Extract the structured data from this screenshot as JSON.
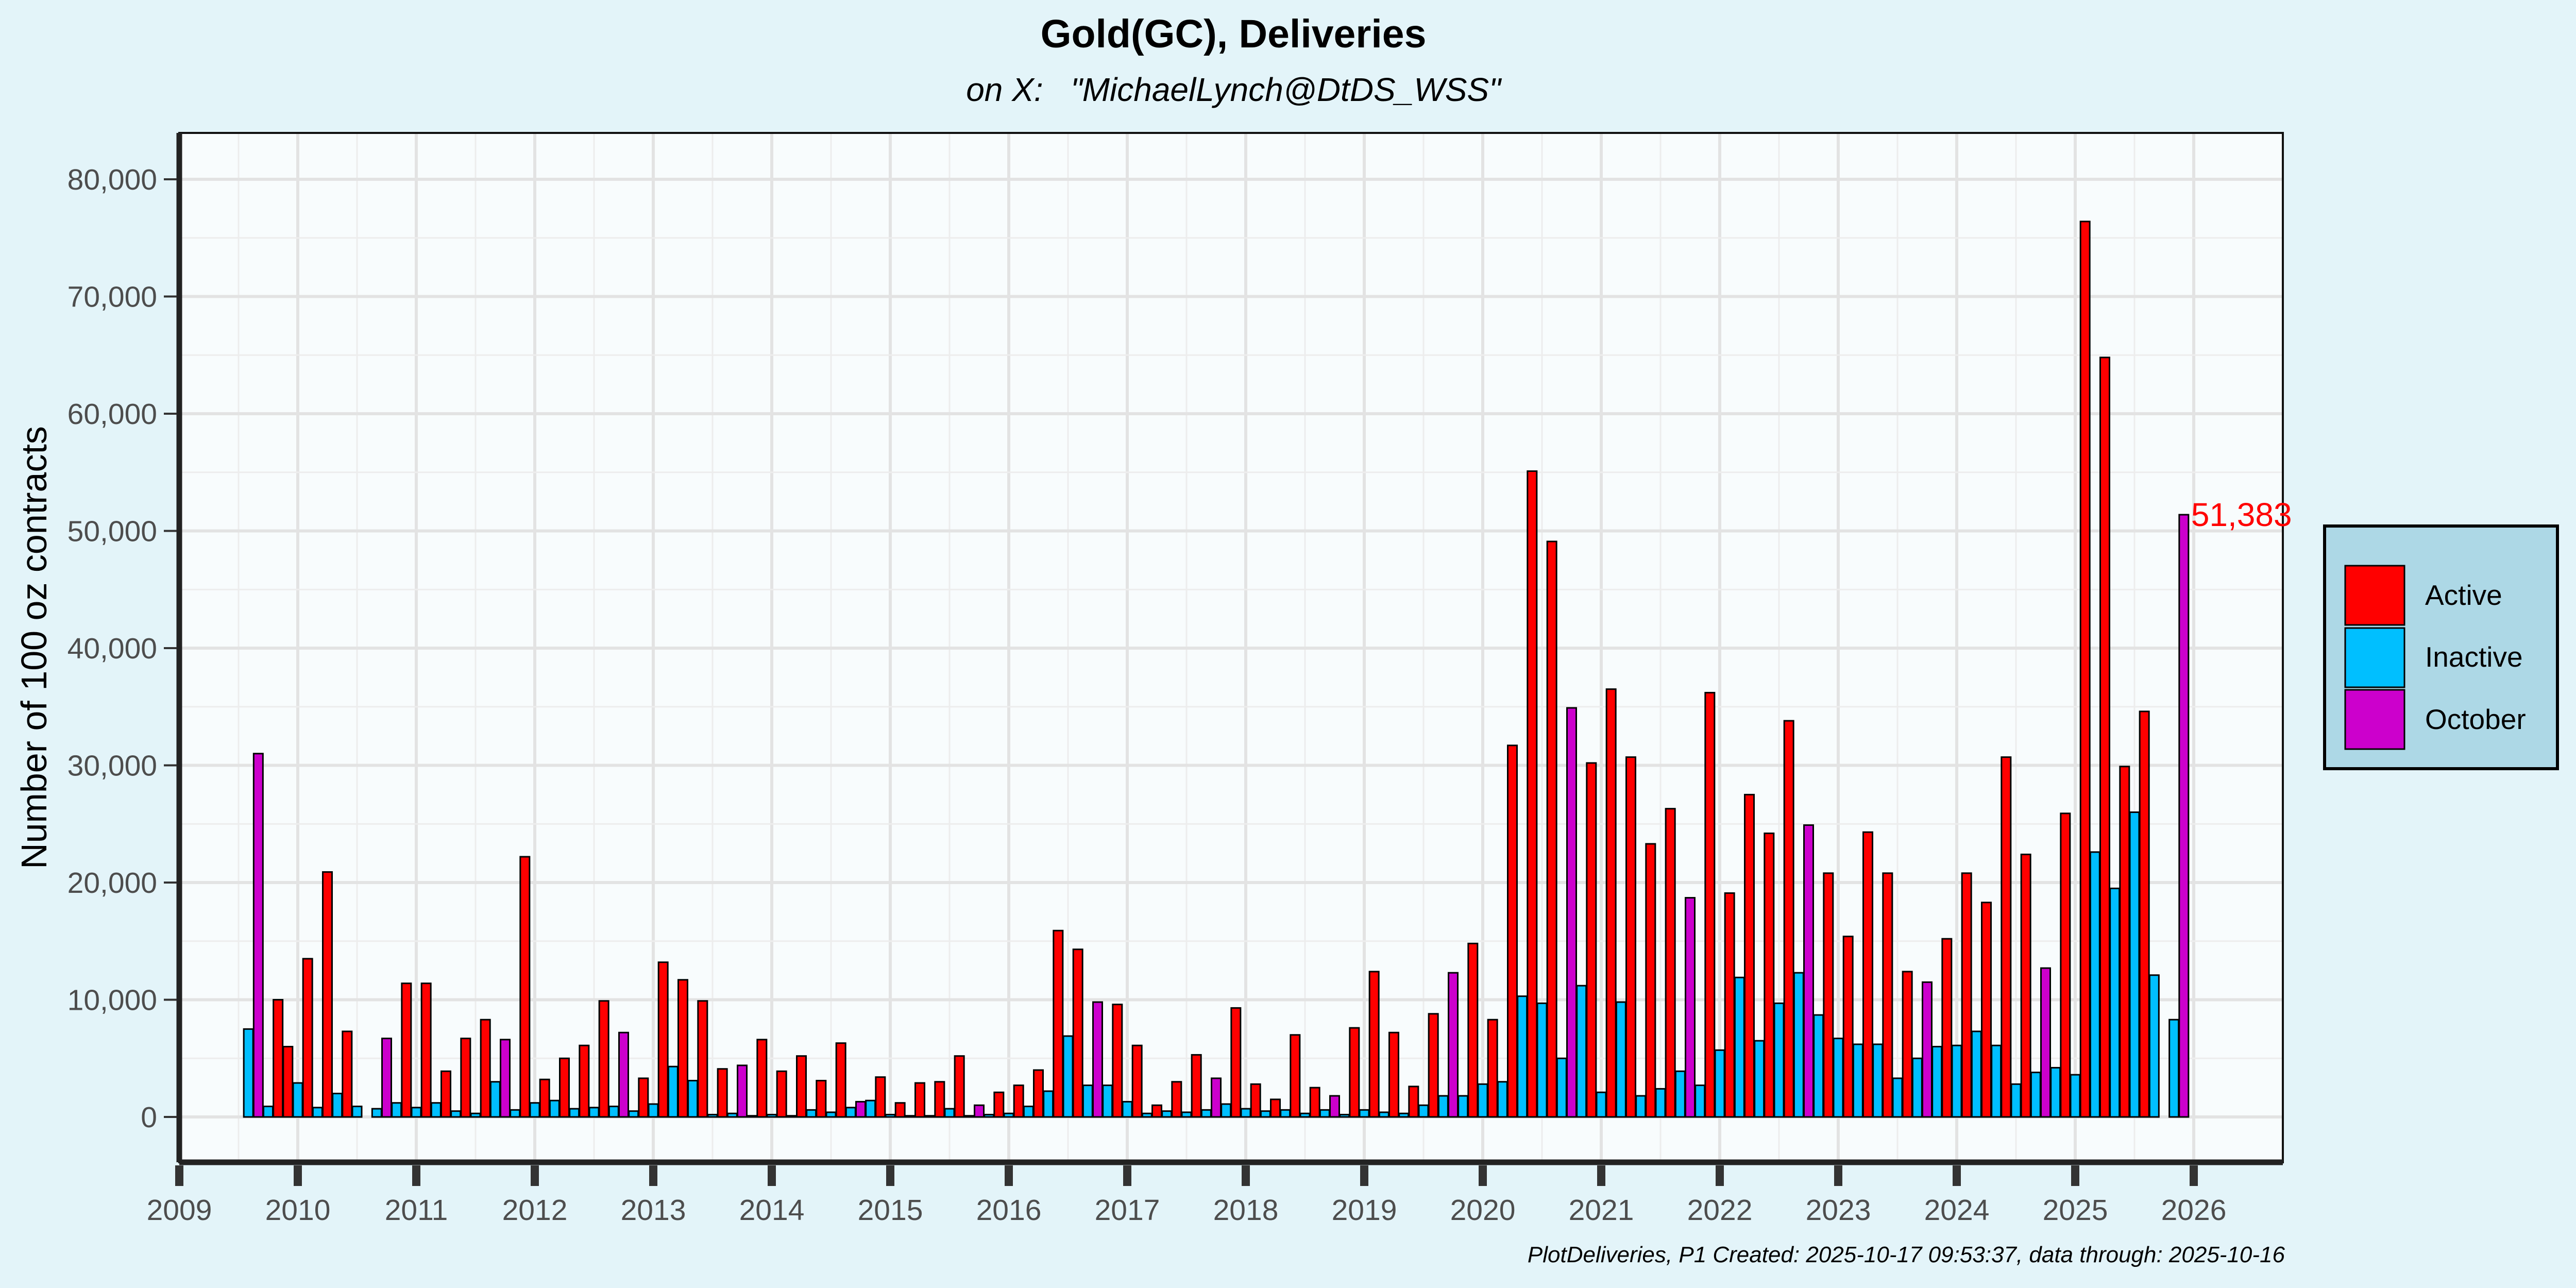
{
  "chart_data": {
    "type": "bar",
    "title": "Gold(GC), Deliveries",
    "subtitle": "on X:   \"MichaelLynch@DtDS_WSS\"",
    "xlabel": "",
    "ylabel": "Number of 100 oz contracts",
    "x_range": [
      "2009",
      "2026"
    ],
    "ylim": [
      0,
      80000
    ],
    "y_ticks": [
      0,
      10000,
      20000,
      30000,
      40000,
      50000,
      60000,
      70000,
      80000
    ],
    "x_ticks": [
      "2009",
      "2010",
      "2011",
      "2012",
      "2013",
      "2014",
      "2015",
      "2016",
      "2017",
      "2018",
      "2019",
      "2020",
      "2021",
      "2022",
      "2023",
      "2024",
      "2025",
      "2026"
    ],
    "grid": true,
    "legend": {
      "position": "right",
      "entries": [
        {
          "name": "Active",
          "color": "#ff0000"
        },
        {
          "name": "Inactive",
          "color": "#00bfff"
        },
        {
          "name": "October",
          "color": "#cc00cc"
        }
      ]
    },
    "series": [
      {
        "name": "Active",
        "color": "#ff0000",
        "points": [
          [
            "2009-11",
            10000
          ],
          [
            "2009-12",
            6000
          ],
          [
            "2010-02",
            13500
          ],
          [
            "2010-04",
            20900
          ],
          [
            "2010-06",
            7300
          ],
          [
            "2010-12",
            11400
          ],
          [
            "2011-02",
            11400
          ],
          [
            "2011-04",
            3900
          ],
          [
            "2011-06",
            6700
          ],
          [
            "2011-08",
            8300
          ],
          [
            "2011-12",
            22200
          ],
          [
            "2012-02",
            3200
          ],
          [
            "2012-04",
            5000
          ],
          [
            "2012-06",
            6100
          ],
          [
            "2012-08",
            9900
          ],
          [
            "2012-12",
            3300
          ],
          [
            "2013-02",
            13200
          ],
          [
            "2013-04",
            11700
          ],
          [
            "2013-06",
            9900
          ],
          [
            "2013-08",
            4100
          ],
          [
            "2013-12",
            6600
          ],
          [
            "2014-02",
            3900
          ],
          [
            "2014-04",
            5200
          ],
          [
            "2014-06",
            3100
          ],
          [
            "2014-08",
            6300
          ],
          [
            "2014-12",
            3400
          ],
          [
            "2015-02",
            1200
          ],
          [
            "2015-04",
            2900
          ],
          [
            "2015-06",
            3000
          ],
          [
            "2015-08",
            5200
          ],
          [
            "2015-12",
            2100
          ],
          [
            "2016-02",
            2700
          ],
          [
            "2016-04",
            4000
          ],
          [
            "2016-06",
            15900
          ],
          [
            "2016-08",
            14300
          ],
          [
            "2016-12",
            9600
          ],
          [
            "2017-02",
            6100
          ],
          [
            "2017-04",
            1000
          ],
          [
            "2017-06",
            3000
          ],
          [
            "2017-08",
            5300
          ],
          [
            "2017-12",
            9300
          ],
          [
            "2018-02",
            2800
          ],
          [
            "2018-04",
            1500
          ],
          [
            "2018-06",
            7000
          ],
          [
            "2018-08",
            2500
          ],
          [
            "2018-12",
            7600
          ],
          [
            "2019-02",
            12400
          ],
          [
            "2019-04",
            7200
          ],
          [
            "2019-06",
            2600
          ],
          [
            "2019-08",
            8800
          ],
          [
            "2019-12",
            14800
          ],
          [
            "2020-02",
            8300
          ],
          [
            "2020-04",
            31700
          ],
          [
            "2020-06",
            55100
          ],
          [
            "2020-08",
            49100
          ],
          [
            "2020-12",
            30200
          ],
          [
            "2021-02",
            36500
          ],
          [
            "2021-04",
            30700
          ],
          [
            "2021-06",
            23300
          ],
          [
            "2021-08",
            26300
          ],
          [
            "2021-12",
            36200
          ],
          [
            "2022-02",
            19100
          ],
          [
            "2022-04",
            27500
          ],
          [
            "2022-06",
            24200
          ],
          [
            "2022-08",
            33800
          ],
          [
            "2022-12",
            20800
          ],
          [
            "2023-02",
            15400
          ],
          [
            "2023-04",
            24300
          ],
          [
            "2023-06",
            20800
          ],
          [
            "2023-08",
            12400
          ],
          [
            "2023-12",
            15200
          ],
          [
            "2024-02",
            20800
          ],
          [
            "2024-04",
            18300
          ],
          [
            "2024-06",
            30700
          ],
          [
            "2024-08",
            22400
          ],
          [
            "2024-12",
            25900
          ],
          [
            "2025-02",
            76400
          ],
          [
            "2025-04",
            64800
          ],
          [
            "2025-06",
            29900
          ],
          [
            "2025-08",
            34600
          ]
        ]
      },
      {
        "name": "Inactive",
        "color": "#00bfff",
        "points": [
          [
            "2009-08",
            7500
          ],
          [
            "2009-10",
            900
          ],
          [
            "2010-01",
            2900
          ],
          [
            "2010-03",
            800
          ],
          [
            "2010-05",
            2000
          ],
          [
            "2010-07",
            900
          ],
          [
            "2010-09",
            700
          ],
          [
            "2010-11",
            1200
          ],
          [
            "2011-01",
            800
          ],
          [
            "2011-03",
            1200
          ],
          [
            "2011-05",
            500
          ],
          [
            "2011-07",
            300
          ],
          [
            "2011-09",
            3000
          ],
          [
            "2011-11",
            600
          ],
          [
            "2012-01",
            1200
          ],
          [
            "2012-03",
            1400
          ],
          [
            "2012-05",
            700
          ],
          [
            "2012-07",
            800
          ],
          [
            "2012-09",
            900
          ],
          [
            "2012-11",
            500
          ],
          [
            "2013-01",
            1100
          ],
          [
            "2013-03",
            4300
          ],
          [
            "2013-05",
            3100
          ],
          [
            "2013-07",
            200
          ],
          [
            "2013-09",
            300
          ],
          [
            "2013-11",
            100
          ],
          [
            "2014-01",
            200
          ],
          [
            "2014-03",
            100
          ],
          [
            "2014-05",
            600
          ],
          [
            "2014-07",
            400
          ],
          [
            "2014-09",
            800
          ],
          [
            "2014-11",
            1400
          ],
          [
            "2015-01",
            200
          ],
          [
            "2015-03",
            100
          ],
          [
            "2015-05",
            100
          ],
          [
            "2015-07",
            700
          ],
          [
            "2015-09",
            100
          ],
          [
            "2015-11",
            200
          ],
          [
            "2016-01",
            300
          ],
          [
            "2016-03",
            900
          ],
          [
            "2016-05",
            2200
          ],
          [
            "2016-07",
            6900
          ],
          [
            "2016-09",
            2700
          ],
          [
            "2016-11",
            2700
          ],
          [
            "2017-01",
            1300
          ],
          [
            "2017-03",
            300
          ],
          [
            "2017-05",
            500
          ],
          [
            "2017-07",
            400
          ],
          [
            "2017-09",
            600
          ],
          [
            "2017-11",
            1100
          ],
          [
            "2018-01",
            700
          ],
          [
            "2018-03",
            500
          ],
          [
            "2018-05",
            600
          ],
          [
            "2018-07",
            300
          ],
          [
            "2018-09",
            600
          ],
          [
            "2018-11",
            200
          ],
          [
            "2019-01",
            600
          ],
          [
            "2019-03",
            400
          ],
          [
            "2019-05",
            300
          ],
          [
            "2019-07",
            1000
          ],
          [
            "2019-09",
            1800
          ],
          [
            "2019-11",
            1800
          ],
          [
            "2020-01",
            2800
          ],
          [
            "2020-03",
            3000
          ],
          [
            "2020-05",
            10300
          ],
          [
            "2020-07",
            9700
          ],
          [
            "2020-09",
            5000
          ],
          [
            "2020-11",
            11200
          ],
          [
            "2021-01",
            2100
          ],
          [
            "2021-03",
            9800
          ],
          [
            "2021-05",
            1800
          ],
          [
            "2021-07",
            2400
          ],
          [
            "2021-09",
            3900
          ],
          [
            "2021-11",
            2700
          ],
          [
            "2022-01",
            5700
          ],
          [
            "2022-03",
            11900
          ],
          [
            "2022-05",
            6500
          ],
          [
            "2022-07",
            9700
          ],
          [
            "2022-09",
            12300
          ],
          [
            "2022-11",
            8700
          ],
          [
            "2023-01",
            6700
          ],
          [
            "2023-03",
            6200
          ],
          [
            "2023-05",
            6200
          ],
          [
            "2023-07",
            3300
          ],
          [
            "2023-09",
            5000
          ],
          [
            "2023-11",
            6000
          ],
          [
            "2024-01",
            6100
          ],
          [
            "2024-03",
            7300
          ],
          [
            "2024-05",
            6100
          ],
          [
            "2024-07",
            2800
          ],
          [
            "2024-09",
            3800
          ],
          [
            "2024-11",
            4200
          ],
          [
            "2025-01",
            3600
          ],
          [
            "2025-03",
            22600
          ],
          [
            "2025-05",
            19500
          ],
          [
            "2025-07",
            26000
          ],
          [
            "2025-09",
            12100
          ],
          [
            "2025-11",
            8300
          ]
        ]
      },
      {
        "name": "October",
        "color": "#cc00cc",
        "points": [
          [
            "2009-09",
            31000
          ],
          [
            "2010-10",
            6700
          ],
          [
            "2011-10",
            6600
          ],
          [
            "2012-10",
            7200
          ],
          [
            "2013-10",
            4400
          ],
          [
            "2014-10",
            1300
          ],
          [
            "2015-10",
            1000
          ],
          [
            "2016-10",
            9800
          ],
          [
            "2017-10",
            3300
          ],
          [
            "2018-10",
            1800
          ],
          [
            "2019-10",
            12300
          ],
          [
            "2020-10",
            34900
          ],
          [
            "2021-10",
            18700
          ],
          [
            "2022-10",
            24900
          ],
          [
            "2023-10",
            11500
          ],
          [
            "2024-10",
            12700
          ],
          [
            "2025-12",
            51383
          ]
        ]
      }
    ],
    "annotations": [
      {
        "text": "51,383",
        "x": "2025-12",
        "y": 51383,
        "color": "#ff0000"
      }
    ],
    "footer": "PlotDeliveries, P1 Created: 2025-10-17 09:53:37, data through: 2025-10-16"
  }
}
